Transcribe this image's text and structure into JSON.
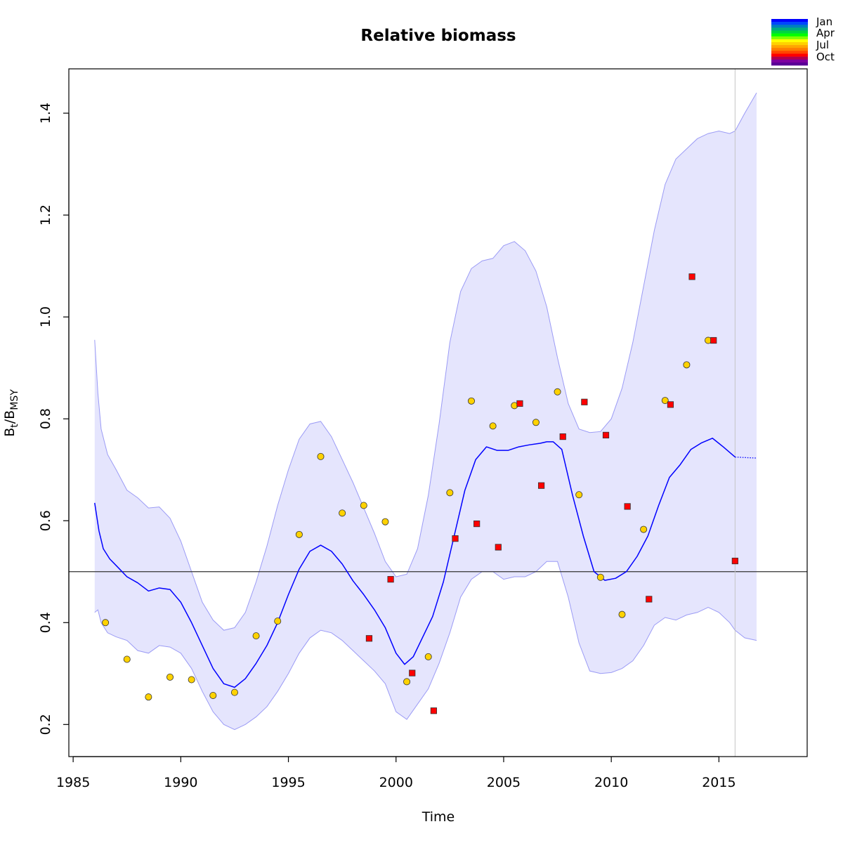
{
  "chart_data": {
    "type": "line",
    "title": "Relative biomass",
    "xlabel": "Time",
    "ylabel": {
      "base1": "B",
      "sub1": "t",
      "slash": "/",
      "base2": "B",
      "sub2": "MSY"
    },
    "xlim": [
      1984.8,
      2019.1
    ],
    "ylim": [
      0.137,
      1.487
    ],
    "x_ticks": [
      1985,
      1990,
      1995,
      2000,
      2005,
      2010,
      2015
    ],
    "y_ticks": [
      0.2,
      0.4,
      0.6,
      0.8,
      1.0,
      1.2,
      1.4
    ],
    "x_tick_labels": [
      "1985",
      "1990",
      "1995",
      "2000",
      "2005",
      "2010",
      "2015"
    ],
    "y_tick_labels": [
      "0.2",
      "0.4",
      "0.6",
      "0.8",
      "1.0",
      "1.2",
      "1.4"
    ],
    "reference_line": 0.5,
    "last_observation_x": 2015.75,
    "legend": {
      "position": "top-right",
      "labels": [
        "Jan",
        "Apr",
        "Jul",
        "Oct"
      ]
    },
    "colors": {
      "estimate_line": "#0000ff",
      "ci_fill": "#e5e5fd",
      "ci_border": "#9b9bf5",
      "index1_fill": "#ffd200",
      "index2_fill": "#ff0000",
      "reference_line": "#333333",
      "vertical_line": "#c4c4c4",
      "legend_gradient": [
        "#0000ff",
        "#0047ff",
        "#007fbf",
        "#00ad80",
        "#00d43f",
        "#00ff00",
        "#7fff00",
        "#ffff00",
        "#ffd200",
        "#ffa500",
        "#ff7b00",
        "#ff4500",
        "#ff0000",
        "#b0004f",
        "#7f00a0",
        "#5a0096"
      ]
    },
    "series": [
      {
        "kind": "estimate",
        "x": [
          1986.0,
          1986.2,
          1986.4,
          1986.7,
          1987.0,
          1987.5,
          1988.0,
          1988.5,
          1989.0,
          1989.5,
          1990.0,
          1990.5,
          1991.0,
          1991.5,
          1992.0,
          1992.5,
          1993.0,
          1993.5,
          1994.0,
          1994.5,
          1995.0,
          1995.5,
          1996.0,
          1996.5,
          1997.0,
          1997.5,
          1998.0,
          1998.5,
          1999.0,
          1999.5,
          2000.0,
          2000.4,
          2000.8,
          2001.2,
          2001.7,
          2002.2,
          2002.7,
          2003.2,
          2003.7,
          2004.2,
          2004.7,
          2005.2,
          2005.7,
          2006.2,
          2006.7,
          2007.0,
          2007.3,
          2007.7,
          2008.2,
          2008.7,
          2009.2,
          2009.7,
          2010.2,
          2010.7,
          2011.2,
          2011.7,
          2012.2,
          2012.7,
          2013.2,
          2013.7,
          2014.2,
          2014.7,
          2015.2,
          2015.75
        ],
        "y": [
          0.635,
          0.58,
          0.545,
          0.525,
          0.512,
          0.49,
          0.478,
          0.462,
          0.468,
          0.465,
          0.44,
          0.4,
          0.355,
          0.31,
          0.28,
          0.273,
          0.29,
          0.32,
          0.355,
          0.4,
          0.455,
          0.505,
          0.54,
          0.552,
          0.54,
          0.515,
          0.482,
          0.455,
          0.425,
          0.39,
          0.34,
          0.318,
          0.333,
          0.368,
          0.412,
          0.48,
          0.57,
          0.66,
          0.72,
          0.745,
          0.738,
          0.738,
          0.745,
          0.749,
          0.752,
          0.755,
          0.755,
          0.74,
          0.65,
          0.57,
          0.5,
          0.483,
          0.487,
          0.5,
          0.53,
          0.57,
          0.63,
          0.685,
          0.71,
          0.74,
          0.753,
          0.762,
          0.745,
          0.725
        ]
      },
      {
        "kind": "forecast",
        "x": [
          2015.75,
          2016.2,
          2016.75
        ],
        "y": [
          0.725,
          0.724,
          0.723
        ]
      },
      {
        "kind": "ci_upper",
        "x": [
          1986.0,
          1986.15,
          1986.3,
          1986.6,
          1987.0,
          1987.5,
          1988.0,
          1988.5,
          1989.0,
          1989.5,
          1990.0,
          1990.5,
          1991.0,
          1991.5,
          1992.0,
          1992.5,
          1993.0,
          1993.5,
          1994.0,
          1994.5,
          1995.0,
          1995.5,
          1996.0,
          1996.5,
          1997.0,
          1997.5,
          1998.0,
          1998.5,
          1999.0,
          1999.5,
          2000.0,
          2000.5,
          2001.0,
          2001.5,
          2002.0,
          2002.5,
          2003.0,
          2003.5,
          2004.0,
          2004.5,
          2005.0,
          2005.5,
          2006.0,
          2006.5,
          2007.0,
          2007.5,
          2008.0,
          2008.5,
          2009.0,
          2009.5,
          2010.0,
          2010.5,
          2011.0,
          2011.5,
          2012.0,
          2012.5,
          2013.0,
          2013.5,
          2014.0,
          2014.5,
          2015.0,
          2015.5,
          2015.75,
          2016.2,
          2016.75
        ],
        "y": [
          0.955,
          0.85,
          0.78,
          0.73,
          0.7,
          0.66,
          0.645,
          0.625,
          0.627,
          0.605,
          0.56,
          0.5,
          0.44,
          0.405,
          0.385,
          0.39,
          0.42,
          0.48,
          0.55,
          0.63,
          0.7,
          0.76,
          0.79,
          0.795,
          0.765,
          0.72,
          0.675,
          0.625,
          0.575,
          0.52,
          0.49,
          0.495,
          0.545,
          0.65,
          0.79,
          0.95,
          1.05,
          1.095,
          1.11,
          1.115,
          1.14,
          1.148,
          1.13,
          1.09,
          1.02,
          0.92,
          0.83,
          0.78,
          0.773,
          0.775,
          0.8,
          0.86,
          0.95,
          1.06,
          1.17,
          1.26,
          1.31,
          1.33,
          1.35,
          1.36,
          1.365,
          1.36,
          1.365,
          1.4,
          1.44
        ]
      },
      {
        "kind": "ci_lower",
        "x": [
          1986.0,
          1986.15,
          1986.3,
          1986.6,
          1987.0,
          1987.5,
          1988.0,
          1988.5,
          1989.0,
          1989.5,
          1990.0,
          1990.5,
          1991.0,
          1991.5,
          1992.0,
          1992.5,
          1993.0,
          1993.5,
          1994.0,
          1994.5,
          1995.0,
          1995.5,
          1996.0,
          1996.5,
          1997.0,
          1997.5,
          1998.0,
          1998.5,
          1999.0,
          1999.5,
          2000.0,
          2000.5,
          2001.0,
          2001.5,
          2002.0,
          2002.5,
          2003.0,
          2003.5,
          2004.0,
          2004.5,
          2005.0,
          2005.5,
          2006.0,
          2006.5,
          2007.0,
          2007.5,
          2008.0,
          2008.5,
          2009.0,
          2009.5,
          2010.0,
          2010.5,
          2011.0,
          2011.5,
          2012.0,
          2012.5,
          2013.0,
          2013.5,
          2014.0,
          2014.5,
          2015.0,
          2015.5,
          2015.75,
          2016.2,
          2016.75
        ],
        "y": [
          0.42,
          0.425,
          0.4,
          0.38,
          0.372,
          0.365,
          0.345,
          0.34,
          0.355,
          0.352,
          0.34,
          0.31,
          0.265,
          0.225,
          0.2,
          0.19,
          0.2,
          0.215,
          0.235,
          0.265,
          0.3,
          0.34,
          0.37,
          0.385,
          0.38,
          0.365,
          0.345,
          0.325,
          0.305,
          0.28,
          0.225,
          0.21,
          0.24,
          0.27,
          0.32,
          0.38,
          0.45,
          0.485,
          0.5,
          0.5,
          0.485,
          0.49,
          0.49,
          0.5,
          0.52,
          0.52,
          0.45,
          0.36,
          0.305,
          0.3,
          0.302,
          0.31,
          0.325,
          0.355,
          0.395,
          0.41,
          0.405,
          0.415,
          0.42,
          0.43,
          0.42,
          0.4,
          0.385,
          0.37,
          0.365
        ]
      },
      {
        "kind": "index1",
        "marker": "circle",
        "x": [
          1986.5,
          1987.5,
          1988.5,
          1989.5,
          1990.5,
          1991.5,
          1992.5,
          1993.5,
          1994.5,
          1995.5,
          1996.5,
          1997.5,
          1998.5,
          1999.5,
          2000.5,
          2001.5,
          2002.5,
          2003.5,
          2004.5,
          2005.5,
          2006.5,
          2007.5,
          2008.5,
          2009.5,
          2010.5,
          2011.5,
          2012.5,
          2013.5,
          2014.5
        ],
        "y": [
          0.4,
          0.328,
          0.254,
          0.293,
          0.288,
          0.257,
          0.263,
          0.374,
          0.403,
          0.573,
          0.726,
          0.615,
          0.63,
          0.598,
          0.284,
          0.333,
          0.655,
          0.835,
          0.786,
          0.826,
          0.793,
          0.853,
          0.651,
          0.489,
          0.416,
          0.583,
          0.836,
          0.906,
          0.954
        ]
      },
      {
        "kind": "index2",
        "marker": "square",
        "x": [
          1998.75,
          1999.75,
          2000.75,
          2001.75,
          2002.75,
          2003.75,
          2004.75,
          2005.75,
          2006.75,
          2007.75,
          2008.75,
          2009.75,
          2010.75,
          2011.75,
          2012.75,
          2013.75,
          2014.75,
          2015.75
        ],
        "y": [
          0.369,
          0.485,
          0.301,
          0.227,
          0.565,
          0.594,
          0.548,
          0.83,
          0.669,
          0.765,
          0.833,
          0.768,
          0.628,
          0.446,
          0.828,
          1.079,
          0.954,
          0.521
        ]
      }
    ]
  }
}
